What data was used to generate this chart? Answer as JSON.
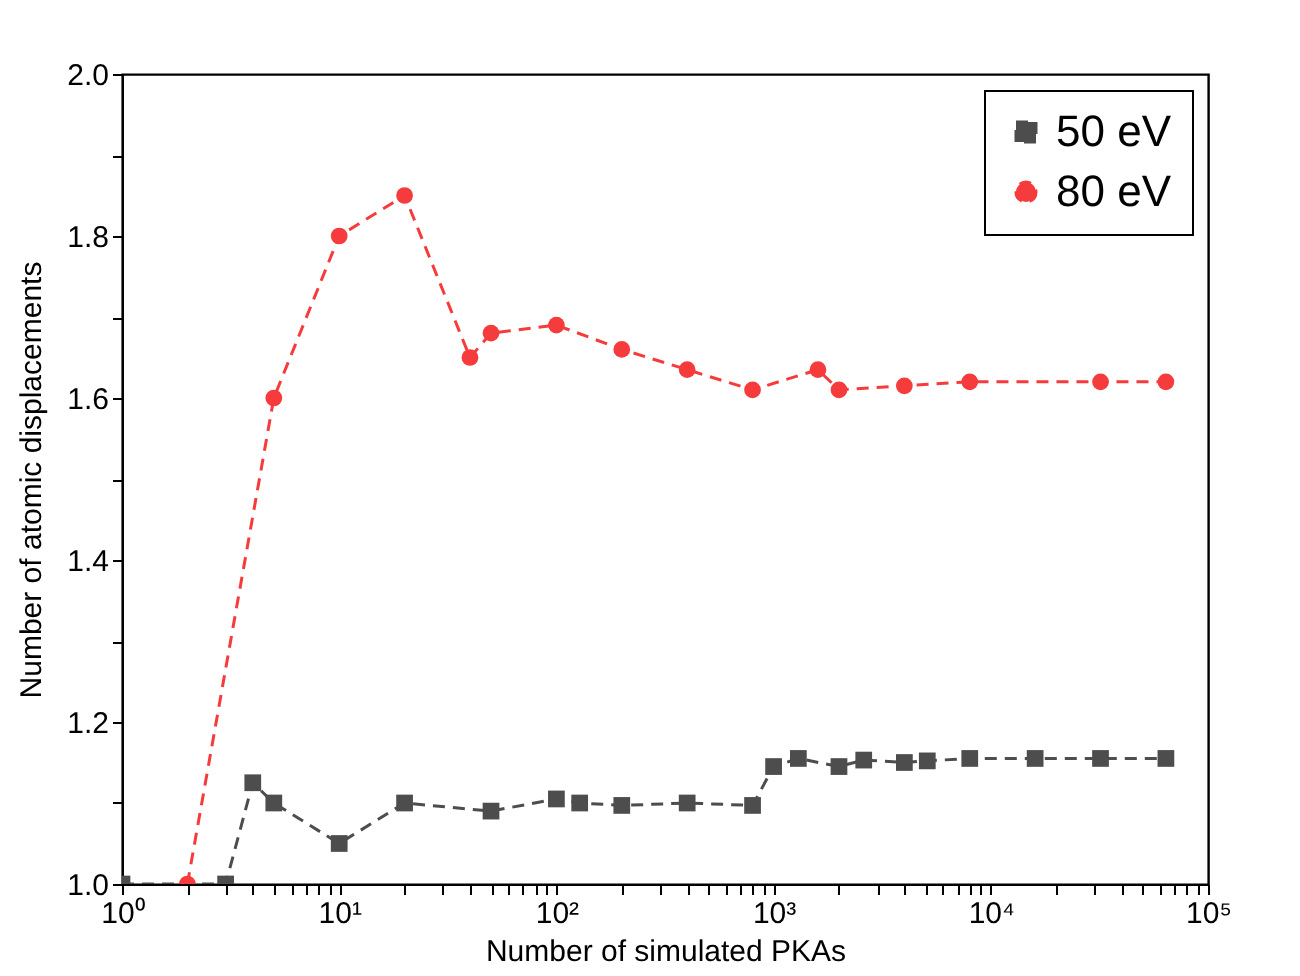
{
  "chart_data": {
    "type": "line",
    "xlabel": "Number of simulated PKAs",
    "ylabel": "Number of atomic displacements",
    "log": "x",
    "xlim": [
      1,
      100000
    ],
    "ylim": [
      1.0,
      2.0
    ],
    "xticks": [
      {
        "value": 1,
        "label": "10⁰"
      },
      {
        "value": 2,
        "label": null
      },
      {
        "value": 3,
        "label": null
      },
      {
        "value": 4,
        "label": null
      },
      {
        "value": 5,
        "label": null
      },
      {
        "value": 6,
        "label": null
      },
      {
        "value": 7,
        "label": null
      },
      {
        "value": 8,
        "label": null
      },
      {
        "value": 9,
        "label": null
      },
      {
        "value": 10,
        "label": "10¹"
      },
      {
        "value": 20,
        "label": null
      },
      {
        "value": 30,
        "label": null
      },
      {
        "value": 40,
        "label": null
      },
      {
        "value": 50,
        "label": null
      },
      {
        "value": 60,
        "label": null
      },
      {
        "value": 70,
        "label": null
      },
      {
        "value": 80,
        "label": null
      },
      {
        "value": 90,
        "label": null
      },
      {
        "value": 100,
        "label": "10²"
      },
      {
        "value": 200,
        "label": null
      },
      {
        "value": 300,
        "label": null
      },
      {
        "value": 400,
        "label": null
      },
      {
        "value": 500,
        "label": null
      },
      {
        "value": 600,
        "label": null
      },
      {
        "value": 700,
        "label": null
      },
      {
        "value": 800,
        "label": null
      },
      {
        "value": 900,
        "label": null
      },
      {
        "value": 1000,
        "label": "10³"
      },
      {
        "value": 2000,
        "label": null
      },
      {
        "value": 3000,
        "label": null
      },
      {
        "value": 4000,
        "label": null
      },
      {
        "value": 5000,
        "label": null
      },
      {
        "value": 6000,
        "label": null
      },
      {
        "value": 7000,
        "label": null
      },
      {
        "value": 8000,
        "label": null
      },
      {
        "value": 9000,
        "label": null
      },
      {
        "value": 10000,
        "label": "10⁴"
      },
      {
        "value": 20000,
        "label": null
      },
      {
        "value": 30000,
        "label": null
      },
      {
        "value": 40000,
        "label": null
      },
      {
        "value": 50000,
        "label": null
      },
      {
        "value": 60000,
        "label": null
      },
      {
        "value": 70000,
        "label": null
      },
      {
        "value": 80000,
        "label": null
      },
      {
        "value": 90000,
        "label": null
      },
      {
        "value": 100000,
        "label": "10⁵"
      }
    ],
    "yticks": [
      {
        "value": 1.0,
        "label": "1.0"
      },
      {
        "value": 1.1,
        "label": null
      },
      {
        "value": 1.2,
        "label": "1.2"
      },
      {
        "value": 1.3,
        "label": null
      },
      {
        "value": 1.4,
        "label": "1.4"
      },
      {
        "value": 1.5,
        "label": null
      },
      {
        "value": 1.6,
        "label": "1.6"
      },
      {
        "value": 1.7,
        "label": null
      },
      {
        "value": 1.8,
        "label": "1.8"
      },
      {
        "value": 1.9,
        "label": null
      },
      {
        "value": 2.0,
        "label": "2.0"
      }
    ],
    "legend": "top right",
    "line_style": "dashed",
    "grid": false,
    "series": [
      {
        "name": "50 eV",
        "color": "#4d4d4d",
        "marker": "square",
        "x": [
          1,
          3,
          4,
          5,
          10,
          20,
          50,
          100,
          128,
          200,
          400,
          800,
          1000,
          1300,
          2000,
          2600,
          4000,
          5100,
          8000,
          16000,
          32000,
          64000
        ],
        "values": [
          1.0,
          1.0,
          1.125,
          1.1,
          1.05,
          1.1,
          1.09,
          1.105,
          1.1,
          1.097,
          1.1,
          1.097,
          1.145,
          1.155,
          1.145,
          1.153,
          1.15,
          1.152,
          1.155,
          1.155,
          1.155,
          1.155
        ]
      },
      {
        "name": "80 eV",
        "color": "#f53b3b",
        "marker": "circle",
        "x": [
          2,
          5,
          10,
          20,
          40,
          50,
          100,
          200,
          400,
          800,
          1600,
          2000,
          4000,
          8000,
          32000,
          64000
        ],
        "values": [
          1.0,
          1.6,
          1.8,
          1.85,
          1.65,
          1.68,
          1.69,
          1.66,
          1.635,
          1.61,
          1.635,
          1.61,
          1.615,
          1.62,
          1.62,
          1.62
        ]
      }
    ]
  }
}
